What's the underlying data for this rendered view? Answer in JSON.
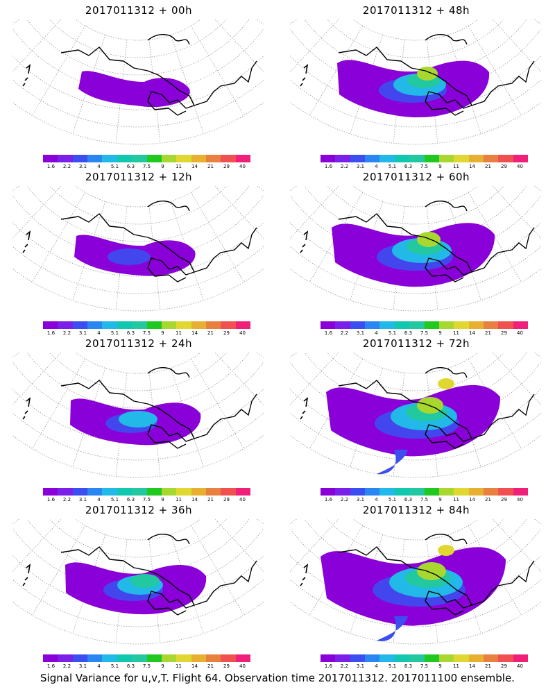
{
  "panels": [
    {
      "title": "2017011312 + 00h",
      "spread": 0
    },
    {
      "title": "2017011312 + 48h",
      "spread": 4
    },
    {
      "title": "2017011312 + 12h",
      "spread": 1
    },
    {
      "title": "2017011312 + 60h",
      "spread": 5
    },
    {
      "title": "2017011312 + 24h",
      "spread": 2
    },
    {
      "title": "2017011312 + 72h",
      "spread": 6
    },
    {
      "title": "2017011312 + 36h",
      "spread": 3
    },
    {
      "title": "2017011312 + 84h",
      "spread": 7
    }
  ],
  "colorbar": {
    "ticks": [
      "1.6",
      "2.2",
      "3.1",
      "4",
      "5.1",
      "6.3",
      "7.5",
      "9",
      "11",
      "14",
      "21",
      "29",
      "40"
    ],
    "colors": [
      "#8a00d8",
      "#7a20e8",
      "#3c4ef0",
      "#2a86f0",
      "#22b8e8",
      "#10c8b0",
      "#22c8a0",
      "#20c820",
      "#a8d830",
      "#e0d830",
      "#e8b030",
      "#e88040",
      "#f05050",
      "#f0207a"
    ]
  },
  "footer": "Signal Variance for u,v,T. Flight 64. Observation time 2017011312. 2017011100 ensemble."
}
